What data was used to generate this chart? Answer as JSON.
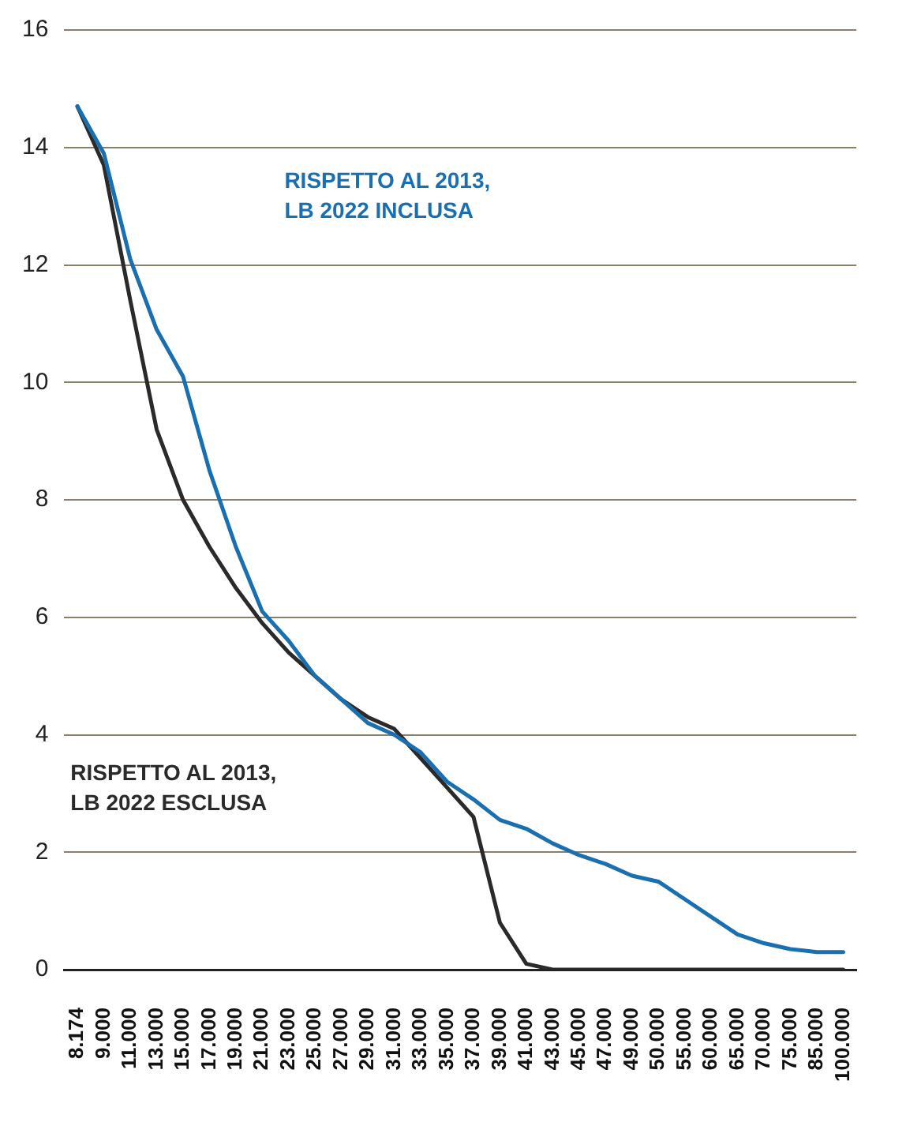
{
  "chart_data": {
    "type": "line",
    "categories": [
      "8.174",
      "9.000",
      "11.000",
      "13.000",
      "15.000",
      "17.000",
      "19.000",
      "21.000",
      "23.000",
      "25.000",
      "27.000",
      "29.000",
      "31.000",
      "33.000",
      "35.000",
      "37.000",
      "39.000",
      "41.000",
      "43.000",
      "45.000",
      "47.000",
      "49.000",
      "50.000",
      "55.000",
      "60.000",
      "65.000",
      "70.000",
      "75.000",
      "85.000",
      "100.000"
    ],
    "series": [
      {
        "name": "RISPETTO AL 2013,\nLB 2022 INCLUSA",
        "color": "#1a6fb0",
        "values": [
          14.7,
          13.9,
          12.1,
          10.9,
          10.1,
          8.5,
          7.2,
          6.1,
          5.6,
          5.0,
          4.6,
          4.2,
          4.0,
          3.7,
          3.2,
          2.9,
          2.55,
          2.4,
          2.15,
          1.95,
          1.8,
          1.6,
          1.5,
          1.2,
          0.9,
          0.6,
          0.45,
          0.35,
          0.3,
          0.3
        ]
      },
      {
        "name": "RISPETTO AL 2013,\nLB 2022 ESCLUSA",
        "color": "#2a2a2a",
        "values": [
          14.7,
          13.7,
          11.4,
          9.2,
          8.0,
          7.2,
          6.5,
          5.9,
          5.4,
          5.0,
          4.6,
          4.3,
          4.1,
          3.6,
          3.1,
          2.6,
          0.8,
          0.1,
          0,
          0,
          0,
          0,
          0,
          0,
          0,
          0,
          0,
          0,
          0,
          0
        ]
      }
    ],
    "ylim": [
      0,
      16
    ],
    "yticks": [
      0,
      2,
      4,
      6,
      8,
      10,
      12,
      14,
      16
    ],
    "grid": "y",
    "legend": false,
    "marker": "none",
    "line_style": "solid"
  }
}
